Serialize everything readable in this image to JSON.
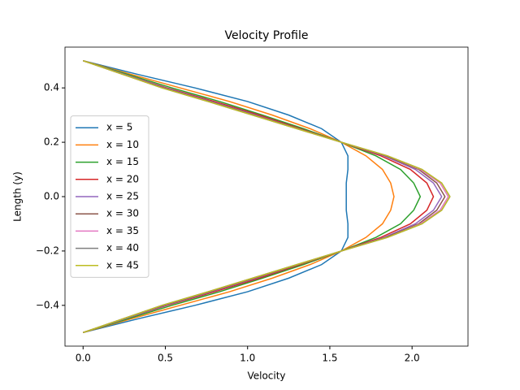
{
  "chart_data": {
    "type": "line",
    "title": "Velocity Profile",
    "x_label": "Velocity",
    "y_label": "Length (y)",
    "y": [
      -0.5,
      -0.45,
      -0.4,
      -0.35,
      -0.3,
      -0.25,
      -0.2,
      -0.15,
      -0.1,
      -0.05,
      0,
      0.05,
      0.1,
      0.15,
      0.2,
      0.25,
      0.3,
      0.35,
      0.4,
      0.45,
      0.5
    ],
    "series": [
      {
        "name": "x = 5",
        "color": "#1f77b4",
        "x": [
          0,
          0.33,
          0.68,
          1.0,
          1.25,
          1.45,
          1.57,
          1.61,
          1.61,
          1.6,
          1.6,
          1.6,
          1.61,
          1.61,
          1.57,
          1.45,
          1.25,
          1.0,
          0.68,
          0.33,
          0
        ]
      },
      {
        "name": "x = 10",
        "color": "#ff7f0e",
        "x": [
          0,
          0.29,
          0.59,
          0.89,
          1.15,
          1.38,
          1.57,
          1.72,
          1.82,
          1.87,
          1.89,
          1.87,
          1.82,
          1.72,
          1.57,
          1.38,
          1.15,
          0.89,
          0.59,
          0.29,
          0
        ]
      },
      {
        "name": "x = 15",
        "color": "#2ca02c",
        "x": [
          0,
          0.27,
          0.54,
          0.83,
          1.09,
          1.34,
          1.57,
          1.78,
          1.93,
          2.01,
          2.05,
          2.01,
          1.93,
          1.78,
          1.57,
          1.34,
          1.09,
          0.83,
          0.54,
          0.27,
          0
        ]
      },
      {
        "name": "x = 20",
        "color": "#d62728",
        "x": [
          0,
          0.25,
          0.51,
          0.8,
          1.07,
          1.32,
          1.57,
          1.81,
          1.99,
          2.09,
          2.13,
          2.09,
          1.99,
          1.81,
          1.57,
          1.32,
          1.07,
          0.8,
          0.51,
          0.25,
          0
        ]
      },
      {
        "name": "x = 25",
        "color": "#9467bd",
        "x": [
          0,
          0.25,
          0.5,
          0.78,
          1.05,
          1.31,
          1.57,
          1.83,
          2.02,
          2.13,
          2.18,
          2.13,
          2.02,
          1.83,
          1.57,
          1.31,
          1.05,
          0.78,
          0.5,
          0.25,
          0
        ]
      },
      {
        "name": "x = 30",
        "color": "#8c564b",
        "x": [
          0,
          0.24,
          0.49,
          0.77,
          1.04,
          1.31,
          1.57,
          1.84,
          2.04,
          2.15,
          2.2,
          2.15,
          2.04,
          1.84,
          1.57,
          1.31,
          1.04,
          0.77,
          0.49,
          0.24,
          0
        ]
      },
      {
        "name": "x = 35",
        "color": "#e377c2",
        "x": [
          0,
          0.24,
          0.48,
          0.76,
          1.03,
          1.3,
          1.57,
          1.85,
          2.05,
          2.17,
          2.22,
          2.17,
          2.05,
          1.85,
          1.57,
          1.3,
          1.03,
          0.76,
          0.48,
          0.24,
          0
        ]
      },
      {
        "name": "x = 40",
        "color": "#7f7f7f",
        "x": [
          0,
          0.24,
          0.48,
          0.76,
          1.03,
          1.3,
          1.57,
          1.85,
          2.06,
          2.18,
          2.23,
          2.18,
          2.06,
          1.85,
          1.57,
          1.3,
          1.03,
          0.76,
          0.48,
          0.24,
          0
        ]
      },
      {
        "name": "x = 45",
        "color": "#bcbd22",
        "x": [
          0,
          0.24,
          0.48,
          0.76,
          1.03,
          1.3,
          1.57,
          1.85,
          2.06,
          2.18,
          2.23,
          2.18,
          2.06,
          1.85,
          1.57,
          1.3,
          1.03,
          0.76,
          0.48,
          0.24,
          0
        ]
      }
    ],
    "xlim": [
      -0.11,
      2.34
    ],
    "ylim": [
      -0.55,
      0.55
    ],
    "xticks": [
      {
        "value": 0,
        "label": "0.0"
      },
      0.5,
      {
        "value": 1,
        "label": "1.0"
      },
      1.5,
      {
        "value": 2,
        "label": "2.0"
      }
    ],
    "yticks": [
      {
        "value": -0.4,
        "label": "−0.4"
      },
      {
        "value": -0.2,
        "label": "−0.2"
      },
      {
        "value": 0,
        "label": "0.0"
      },
      {
        "value": 0.2,
        "label": "0.2"
      },
      {
        "value": 0.4,
        "label": "0.4"
      }
    ],
    "legend": "center left"
  }
}
